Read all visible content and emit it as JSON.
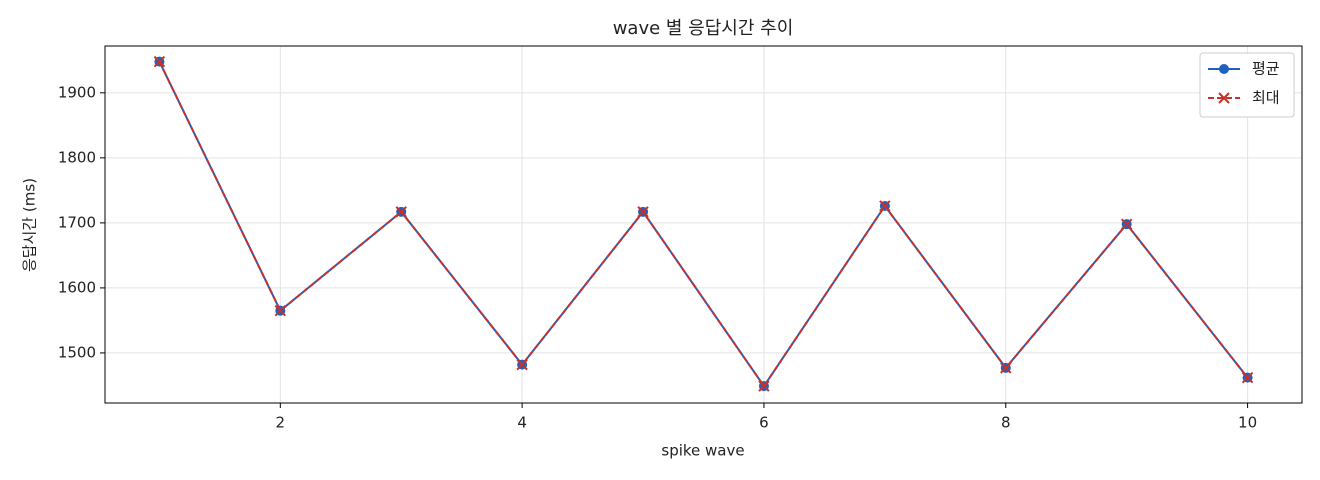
{
  "chart_data": {
    "type": "line",
    "title": "wave 별 응답시간 추이",
    "xlabel": "spike wave",
    "ylabel": "응답시간 (ms)",
    "x": [
      1,
      2,
      3,
      4,
      5,
      6,
      7,
      8,
      9,
      10
    ],
    "series": [
      {
        "name": "평균",
        "color": "#1f62bd",
        "marker": "o",
        "linestyle": "solid",
        "values": [
          1948,
          1565,
          1717,
          1482,
          1717,
          1449,
          1726,
          1477,
          1698,
          1462
        ]
      },
      {
        "name": "최대",
        "color": "#c9302c",
        "marker": "x",
        "linestyle": "dashed",
        "values": [
          1948,
          1565,
          1717,
          1482,
          1717,
          1449,
          1726,
          1477,
          1698,
          1462
        ]
      }
    ],
    "xlim": [
      0.55,
      10.45
    ],
    "xticks": [
      2,
      4,
      6,
      8,
      10
    ],
    "ylim": [
      1423,
      1972
    ],
    "yticks": [
      1500,
      1600,
      1700,
      1800,
      1900
    ],
    "grid": true,
    "legend": "upper right"
  }
}
